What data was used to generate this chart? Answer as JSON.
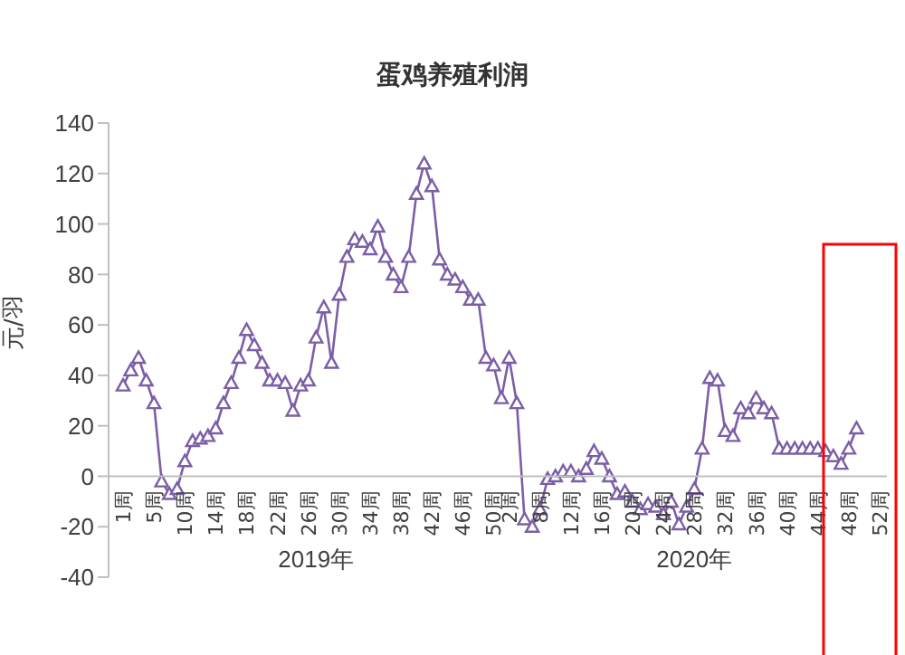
{
  "chart_data": {
    "type": "line",
    "title": "蛋鸡养殖利润",
    "ylabel": "元/羽",
    "categories": [
      "1周",
      null,
      null,
      null,
      "5周",
      null,
      null,
      null,
      "10周",
      null,
      null,
      null,
      "14周",
      null,
      null,
      null,
      "18周",
      null,
      null,
      null,
      "22周",
      null,
      null,
      null,
      "26周",
      null,
      null,
      null,
      "30周",
      null,
      null,
      null,
      "34周",
      null,
      null,
      null,
      "38周",
      null,
      null,
      null,
      "42周",
      null,
      null,
      null,
      "46周",
      null,
      null,
      null,
      "50周",
      null,
      "2周",
      null,
      null,
      null,
      "8周",
      null,
      null,
      null,
      "12周",
      null,
      null,
      null,
      "16周",
      null,
      null,
      null,
      "20周",
      null,
      null,
      null,
      "24周",
      null,
      null,
      null,
      "28周",
      null,
      null,
      null,
      "32周",
      null,
      null,
      null,
      "36周",
      null,
      null,
      null,
      "40周",
      null,
      null,
      null,
      "44周",
      null,
      null,
      null,
      "48周",
      null,
      null,
      null,
      "52周"
    ],
    "series": [
      {
        "color": "#7b5ea7",
        "values": [
          36,
          42,
          47,
          38,
          29,
          -2,
          -7,
          -5,
          6,
          14,
          15,
          16,
          19,
          29,
          37,
          47,
          58,
          52,
          45,
          38,
          38,
          37,
          26,
          36,
          38,
          55,
          67,
          45,
          72,
          87,
          94,
          93,
          90,
          99,
          87,
          80,
          75,
          87,
          112,
          124,
          115,
          86,
          80,
          78,
          75,
          70,
          70,
          47,
          44,
          31,
          47,
          29,
          -17,
          -20,
          -13,
          -1,
          0,
          2,
          2,
          0,
          3,
          10,
          7,
          0,
          -7,
          -6,
          -10,
          -13,
          -11,
          -12,
          -15,
          -10,
          -19,
          -12,
          -5,
          11,
          39,
          38,
          18,
          16,
          27,
          25,
          31,
          27,
          25,
          11,
          11,
          11,
          11,
          11,
          11,
          10,
          8,
          5,
          11,
          19,
          null,
          null,
          null
        ]
      }
    ],
    "ylim": [
      -40,
      140
    ],
    "yticks": [
      -40,
      -20,
      0,
      20,
      40,
      60,
      80,
      100,
      120,
      140
    ],
    "grid": false,
    "marker": "triangle",
    "line_style": "solid",
    "legend": false,
    "annotations": [
      "2019年",
      "2020年"
    ]
  }
}
